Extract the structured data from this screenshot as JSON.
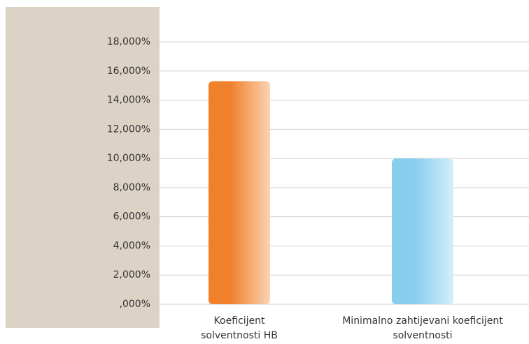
{
  "chart_data": {
    "type": "bar",
    "categories": [
      "Koeficijent solventnosti HB",
      "Minimalno zahtijevani koeficijent solventnosti"
    ],
    "values": [
      15.3,
      10.0
    ],
    "colors": [
      "#f0802a",
      "#86cdee"
    ],
    "ylim": [
      0,
      18
    ],
    "yticks": [
      {
        "value": 0,
        "label": ",000%"
      },
      {
        "value": 2,
        "label": "2,000%"
      },
      {
        "value": 4,
        "label": "4,000%"
      },
      {
        "value": 6,
        "label": "6,000%"
      },
      {
        "value": 8,
        "label": "8,000%"
      },
      {
        "value": 10,
        "label": "10,000%"
      },
      {
        "value": 12,
        "label": "12,000%"
      },
      {
        "value": 14,
        "label": "14,000%"
      },
      {
        "value": 16,
        "label": "16,000%"
      },
      {
        "value": 18,
        "label": "18,000%"
      }
    ],
    "grid": true
  }
}
